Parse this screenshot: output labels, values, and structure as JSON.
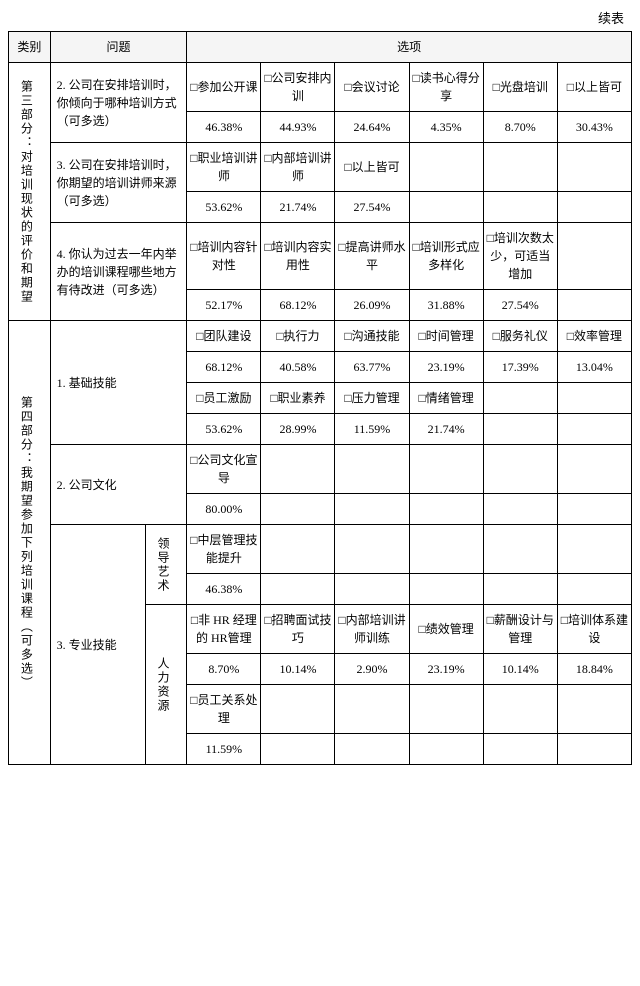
{
  "caption": "续表",
  "head": {
    "cat": "类别",
    "question": "问题",
    "options": "选项"
  },
  "p3": {
    "title": "第三部分：对培训现状的评价和期望",
    "q2": {
      "text": "2. 公司在安排培训时，你倾向于哪种培训方式（可多选）",
      "opts": [
        "□参加公开课",
        "□公司安排内训",
        "□会议讨论",
        "□读书心得分享",
        "□光盘培训",
        "□以上皆可"
      ],
      "vals": [
        "46.38%",
        "44.93%",
        "24.64%",
        "4.35%",
        "8.70%",
        "30.43%"
      ]
    },
    "q3": {
      "text": "3. 公司在安排培训时，你期望的培训讲师来源（可多选）",
      "opts": [
        "□职业培训讲师",
        "□内部培训讲师",
        "□以上皆可",
        "",
        "",
        ""
      ],
      "vals": [
        "53.62%",
        "21.74%",
        "27.54%",
        "",
        "",
        ""
      ]
    },
    "q4": {
      "text": "4. 你认为过去一年内举办的培训课程哪些地方有待改进（可多选）",
      "opts": [
        "□培训内容针对性",
        "□培训内容实用性",
        "□提高讲师水平",
        "□培训形式应多样化",
        "□培训次数太少，可适当增加",
        ""
      ],
      "vals": [
        "52.17%",
        "68.12%",
        "26.09%",
        "31.88%",
        "27.54%",
        ""
      ]
    }
  },
  "p4": {
    "title": "第四部分：我期望参加下列培训课程（可多选）",
    "q1": {
      "text": "1. 基础技能",
      "r1o": [
        "□团队建设",
        "□执行力",
        "□沟通技能",
        "□时间管理",
        "□服务礼仪",
        "□效率管理"
      ],
      "r1v": [
        "68.12%",
        "40.58%",
        "63.77%",
        "23.19%",
        "17.39%",
        "13.04%"
      ],
      "r2o": [
        "□员工激励",
        "□职业素养",
        "□压力管理",
        "□情绪管理",
        "",
        ""
      ],
      "r2v": [
        "53.62%",
        "28.99%",
        "11.59%",
        "21.74%",
        "",
        ""
      ]
    },
    "q2": {
      "text": "2. 公司文化",
      "opts": [
        "□公司文化宣导",
        "",
        "",
        "",
        "",
        ""
      ],
      "vals": [
        "80.00%",
        "",
        "",
        "",
        "",
        ""
      ]
    },
    "q3": {
      "text": "3. 专业技能",
      "sub1": {
        "label": "领导艺术",
        "opts": [
          "□中层管理技能提升",
          "",
          "",
          "",
          "",
          ""
        ],
        "vals": [
          "46.38%",
          "",
          "",
          "",
          "",
          ""
        ]
      },
      "sub2": {
        "label": "人力资源",
        "r1o": [
          "□非 HR 经理的 HR管理",
          "□招聘面试技巧",
          "□内部培训讲师训练",
          "□绩效管理",
          "□薪酬设计与管理",
          "□培训体系建设"
        ],
        "r1v": [
          "8.70%",
          "10.14%",
          "2.90%",
          "23.19%",
          "10.14%",
          "18.84%"
        ],
        "r2o": [
          "□员工关系处理",
          "",
          "",
          "",
          "",
          ""
        ],
        "r2v": [
          "11.59%",
          "",
          "",
          "",
          "",
          ""
        ]
      }
    }
  }
}
